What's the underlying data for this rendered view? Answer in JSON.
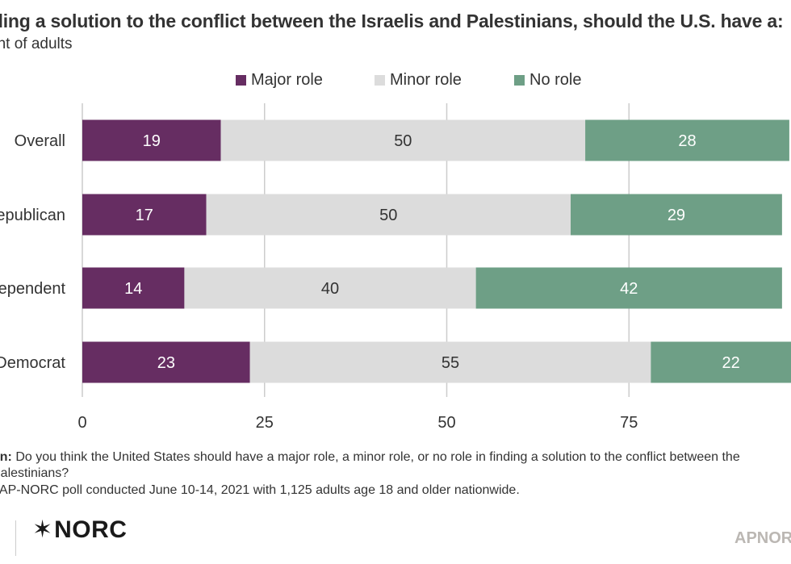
{
  "title": "nding a solution to the conflict between the Israelis and Palestinians, should the U.S. have a:",
  "subtitle": "ent of adults",
  "colors": {
    "major": "#662d62",
    "minor": "#dcdcdc",
    "none": "#6e9f86",
    "grid": "#cccccc"
  },
  "legend": [
    {
      "label": "Major role",
      "color": "#662d62"
    },
    {
      "label": "Minor role",
      "color": "#dcdcdc"
    },
    {
      "label": "No role",
      "color": "#6e9f86"
    }
  ],
  "chart_data": {
    "type": "bar",
    "orientation": "horizontal",
    "stacked": true,
    "title": "nding a solution to the conflict between the Israelis and Palestinians, should the U.S. have a:",
    "subtitle": "ent of adults",
    "categories": [
      "Overall",
      "epublican",
      "ependent",
      "Democrat"
    ],
    "series": [
      {
        "name": "Major role",
        "values": [
          19,
          17,
          14,
          23
        ]
      },
      {
        "name": "Minor role",
        "values": [
          50,
          50,
          40,
          55
        ]
      },
      {
        "name": "No role",
        "values": [
          28,
          29,
          42,
          22
        ]
      }
    ],
    "xticks": [
      "0",
      "25",
      "50",
      "75"
    ],
    "xlim": [
      0,
      97
    ],
    "grid": true,
    "legend_position": "top"
  },
  "notes": {
    "question_label": "on:",
    "question_text": " Do you think the United States should have a major role, a minor role, or no role in finding a solution to the conflict between the",
    "question_cont": " Palestinians?",
    "source_label": ":",
    "source_text": " AP-NORC poll conducted June 10-14, 2021 with 1,125 adults age 18 and older nationwide."
  },
  "logo": {
    "star": "✶",
    "text": "NORC"
  },
  "apnorc": "APNOR"
}
